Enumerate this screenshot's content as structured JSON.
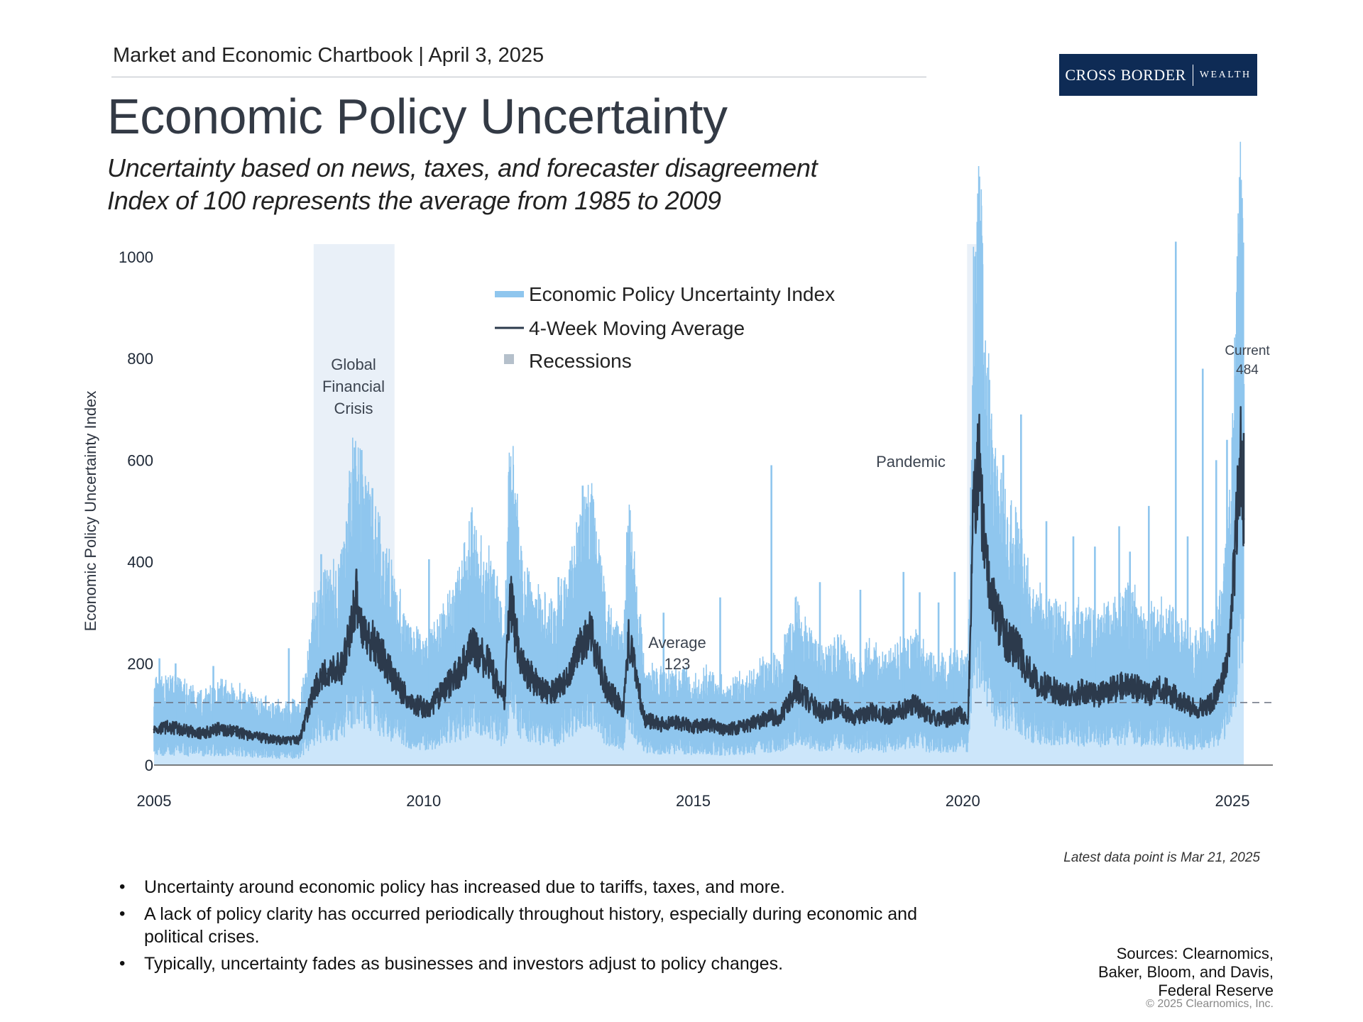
{
  "header": {
    "chartbook": "Market and Economic Chartbook | April 3, 2025",
    "title": "Economic Policy Uncertainty",
    "subtitle_line1": "Uncertainty based on news, taxes, and forecaster disagreement",
    "subtitle_line2": "Index of 100 represents the average from 1985 to 2009"
  },
  "logo": {
    "main": "CROSS BORDER",
    "sub": "WEALTH"
  },
  "colors": {
    "index_fill": "#cce6fa",
    "index_line": "#8fc6ee",
    "moving_average": "#2c3a4c",
    "recession": "#a8c2e2",
    "navy": "#0e2b55"
  },
  "chart_data": {
    "type": "line",
    "title": "Economic Policy Uncertainty",
    "ylabel": "Economic Policy Uncertainty Index",
    "xlabel": "",
    "xlim": [
      2005,
      2025.75
    ],
    "ylim": [
      0,
      1000
    ],
    "xticks": [
      2005,
      2010,
      2015,
      2020,
      2025
    ],
    "yticks": [
      0,
      200,
      400,
      600,
      800,
      1000
    ],
    "legend": {
      "position": "top-center",
      "entries": [
        "Economic Policy Uncertainty Index",
        "4-Week Moving Average",
        "Recessions"
      ]
    },
    "recessions": [
      {
        "start": 2007.96,
        "end": 2009.46,
        "label": "Global Financial Crisis"
      },
      {
        "start": 2020.08,
        "end": 2020.25,
        "label": "Pandemic"
      }
    ],
    "average": {
      "value": 123,
      "label": "Average",
      "value_label": "123"
    },
    "current": {
      "x": 2025.21,
      "value": 484,
      "label": "Current",
      "value_label": "484"
    },
    "series": [
      {
        "name": "4-Week Moving Average",
        "x": [
          2005.0,
          2005.3,
          2005.6,
          2005.9,
          2006.2,
          2006.5,
          2006.8,
          2007.1,
          2007.4,
          2007.7,
          2008.0,
          2008.2,
          2008.5,
          2008.75,
          2008.9,
          2009.1,
          2009.3,
          2009.5,
          2009.8,
          2010.1,
          2010.4,
          2010.7,
          2010.9,
          2011.2,
          2011.5,
          2011.6,
          2011.8,
          2012.1,
          2012.4,
          2012.7,
          2012.9,
          2013.1,
          2013.4,
          2013.7,
          2013.8,
          2014.1,
          2014.4,
          2014.7,
          2015.0,
          2015.3,
          2015.6,
          2015.9,
          2016.2,
          2016.45,
          2016.6,
          2016.9,
          2017.1,
          2017.4,
          2017.7,
          2018.0,
          2018.3,
          2018.6,
          2018.9,
          2019.1,
          2019.4,
          2019.7,
          2019.9,
          2020.1,
          2020.2,
          2020.3,
          2020.4,
          2020.6,
          2020.8,
          2021.0,
          2021.3,
          2021.6,
          2021.9,
          2022.2,
          2022.5,
          2022.8,
          2023.1,
          2023.4,
          2023.7,
          2024.0,
          2024.3,
          2024.6,
          2024.8,
          2024.95,
          2025.05,
          2025.15,
          2025.21
        ],
        "values": [
          70,
          75,
          68,
          62,
          72,
          66,
          58,
          52,
          48,
          50,
          160,
          180,
          190,
          330,
          260,
          240,
          200,
          160,
          120,
          110,
          150,
          190,
          230,
          200,
          130,
          330,
          200,
          160,
          140,
          180,
          230,
          260,
          150,
          110,
          250,
          90,
          80,
          85,
          75,
          80,
          70,
          75,
          85,
          95,
          90,
          150,
          130,
          100,
          115,
          90,
          105,
          95,
          110,
          120,
          95,
          90,
          100,
          95,
          520,
          600,
          430,
          300,
          250,
          230,
          170,
          150,
          140,
          145,
          135,
          150,
          160,
          140,
          150,
          130,
          110,
          120,
          160,
          250,
          420,
          620,
          484
        ]
      },
      {
        "name": "Economic Policy Uncertainty Index",
        "spike_x": [
          2005.1,
          2005.4,
          2006.1,
          2007.5,
          2007.9,
          2008.1,
          2008.72,
          2008.85,
          2009.05,
          2009.25,
          2010.1,
          2010.6,
          2010.85,
          2011.58,
          2012.0,
          2012.5,
          2012.95,
          2013.75,
          2014.45,
          2015.5,
          2016.45,
          2016.9,
          2017.35,
          2018.1,
          2018.9,
          2019.2,
          2019.55,
          2019.85,
          2020.22,
          2020.28,
          2020.4,
          2020.75,
          2021.08,
          2021.55,
          2022.05,
          2022.45,
          2022.9,
          2023.1,
          2023.45,
          2023.95,
          2024.17,
          2024.45,
          2024.7,
          2024.9,
          2025.05,
          2025.21
        ],
        "spike_values": [
          210,
          200,
          195,
          230,
          240,
          415,
          625,
          620,
          545,
          420,
          405,
          360,
          410,
          570,
          340,
          370,
          550,
          320,
          300,
          330,
          590,
          330,
          360,
          345,
          380,
          340,
          320,
          380,
          770,
          860,
          700,
          610,
          690,
          480,
          450,
          430,
          470,
          420,
          510,
          1030,
          450,
          780,
          600,
          640,
          680,
          750
        ]
      }
    ]
  },
  "annotations": {
    "gfc": [
      "Global",
      "Financial",
      "Crisis"
    ],
    "pandemic": "Pandemic",
    "average_label": "Average",
    "average_value": "123",
    "current_label": "Current",
    "current_value": "484"
  },
  "footnote": "Latest data point is Mar 21, 2025",
  "bullets": [
    "Uncertainty around economic policy has increased due to tariffs, taxes, and more.",
    "A lack of policy clarity has occurred periodically throughout history, especially during economic and political crises.",
    "Typically, uncertainty fades as businesses and investors adjust to policy changes."
  ],
  "sources": [
    "Sources: Clearnomics,",
    "Baker, Bloom, and Davis,",
    "Federal Reserve"
  ],
  "copyright": "© 2025 Clearnomics, Inc."
}
